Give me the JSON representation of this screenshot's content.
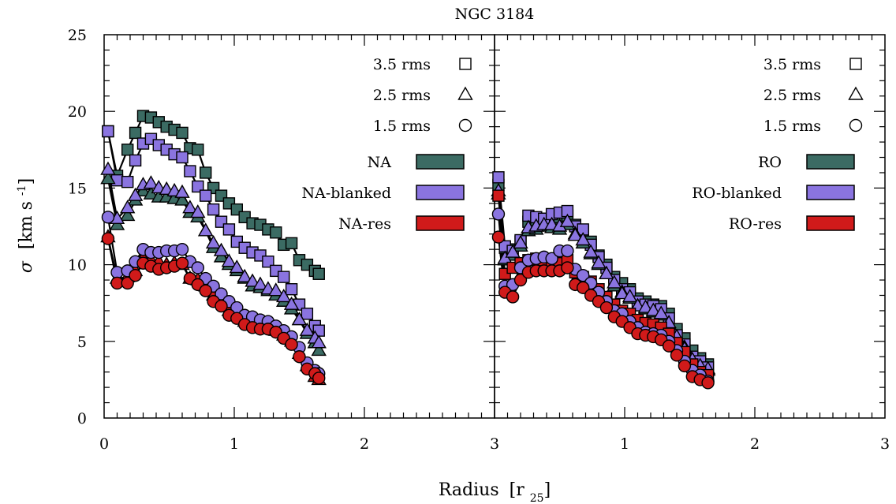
{
  "chart_data": {
    "type": "scatter",
    "title": "NGC 3184",
    "xlabel": "Radius",
    "xlabel_unit": "r",
    "xlabel_unit_sub": "25",
    "ylabel": "σ",
    "ylabel_unit": "km s",
    "ylabel_unit_sup": "-1",
    "ylim": [
      0,
      25
    ],
    "xlim": [
      0,
      3
    ],
    "y_ticks": [
      "0",
      "5",
      "10",
      "15",
      "20",
      "25"
    ],
    "x_ticks_left": [
      "0",
      "1",
      "2",
      "3"
    ],
    "x_ticks_right": [
      "1",
      "2",
      "3"
    ],
    "colors": {
      "dark": "#3b6b63",
      "blanked": "#8a74e0",
      "res": "#d01a1a"
    },
    "threshold_legend": [
      {
        "label": "3.5 rms",
        "marker": "square"
      },
      {
        "label": "2.5 rms",
        "marker": "triangle"
      },
      {
        "label": "1.5 rms",
        "marker": "circle"
      }
    ],
    "panels": [
      {
        "id": "left",
        "method_legend": [
          {
            "label": "NA",
            "color": "dark"
          },
          {
            "label": "NA-blanked",
            "color": "blanked"
          },
          {
            "label": "NA-res",
            "color": "res"
          }
        ],
        "x": [
          0.03,
          0.1,
          0.18,
          0.24,
          0.3,
          0.36,
          0.42,
          0.48,
          0.54,
          0.6,
          0.66,
          0.72,
          0.78,
          0.84,
          0.9,
          0.96,
          1.02,
          1.08,
          1.14,
          1.2,
          1.26,
          1.32,
          1.38,
          1.44,
          1.5,
          1.56,
          1.62,
          1.65
        ],
        "series": [
          {
            "name": "NA",
            "marker": "square",
            "color": "dark",
            "values": [
              18.7,
              15.8,
              17.5,
              18.6,
              19.7,
              19.6,
              19.3,
              19.0,
              18.8,
              18.6,
              17.6,
              17.5,
              16.0,
              15.0,
              14.5,
              14.0,
              13.6,
              13.1,
              12.7,
              12.6,
              12.3,
              12.1,
              11.3,
              11.4,
              10.3,
              10.0,
              9.6,
              9.4
            ]
          },
          {
            "name": "NA-blanked",
            "marker": "square",
            "color": "blanked",
            "values": [
              18.7,
              15.5,
              15.4,
              16.8,
              17.9,
              18.2,
              17.8,
              17.5,
              17.2,
              17.0,
              16.1,
              15.1,
              14.5,
              13.6,
              12.8,
              12.3,
              11.5,
              11.1,
              10.8,
              10.6,
              10.2,
              9.6,
              9.2,
              8.4,
              7.4,
              6.8,
              6.0,
              5.7
            ]
          },
          {
            "name": "NA",
            "marker": "triangle",
            "color": "dark",
            "values": [
              15.6,
              12.6,
              13.2,
              14.2,
              14.8,
              14.6,
              14.4,
              14.4,
              14.3,
              14.2,
              13.4,
              13.1,
              12.2,
              11.1,
              10.5,
              10.0,
              9.6,
              9.1,
              8.6,
              8.5,
              8.3,
              8.0,
              7.6,
              7.1,
              6.4,
              5.5,
              4.9,
              4.4
            ]
          },
          {
            "name": "NA-blanked",
            "marker": "triangle",
            "color": "blanked",
            "values": [
              16.2,
              13.0,
              13.7,
              14.5,
              15.2,
              15.3,
              15.0,
              14.9,
              14.8,
              14.7,
              13.7,
              13.4,
              12.2,
              11.4,
              10.9,
              10.2,
              9.8,
              9.2,
              8.9,
              8.7,
              8.4,
              8.3,
              7.9,
              7.4,
              6.4,
              5.7,
              5.2,
              4.9
            ]
          },
          {
            "name": "NA-res",
            "marker": "triangle",
            "color": "res",
            "values": [
              11.8,
              9.1,
              9.2,
              9.6,
              10.4,
              10.3,
              10.2,
              10.0,
              10.1,
              10.0,
              9.1,
              9.0,
              8.6,
              8.0,
              7.6,
              7.0,
              6.7,
              6.3,
              6.1,
              6.0,
              5.9,
              5.7,
              5.4,
              5.0,
              4.2,
              3.4,
              2.7,
              2.5
            ]
          },
          {
            "name": "NA-blanked",
            "marker": "circle",
            "color": "blanked",
            "values": [
              13.1,
              9.5,
              9.6,
              10.2,
              11.0,
              10.8,
              10.8,
              10.9,
              10.9,
              11.0,
              10.2,
              9.8,
              9.1,
              8.6,
              8.1,
              7.6,
              7.2,
              6.7,
              6.6,
              6.4,
              6.3,
              6.0,
              5.7,
              5.3,
              4.6,
              3.6,
              3.1,
              2.9
            ]
          },
          {
            "name": "NA-res",
            "marker": "circle",
            "color": "res",
            "values": [
              11.7,
              8.8,
              8.8,
              9.3,
              10.1,
              9.9,
              9.7,
              9.8,
              9.9,
              10.1,
              9.1,
              8.7,
              8.3,
              7.6,
              7.3,
              6.7,
              6.5,
              6.1,
              5.9,
              5.8,
              5.8,
              5.6,
              5.2,
              4.8,
              4.0,
              3.2,
              2.9,
              2.6
            ]
          }
        ]
      },
      {
        "id": "right",
        "method_legend": [
          {
            "label": "RO",
            "color": "dark"
          },
          {
            "label": "RO-blanked",
            "color": "blanked"
          },
          {
            "label": "RO-res",
            "color": "res"
          }
        ],
        "x": [
          0.03,
          0.08,
          0.14,
          0.2,
          0.26,
          0.32,
          0.38,
          0.44,
          0.5,
          0.56,
          0.62,
          0.68,
          0.74,
          0.8,
          0.86,
          0.92,
          0.98,
          1.04,
          1.1,
          1.16,
          1.22,
          1.28,
          1.34,
          1.4,
          1.46,
          1.52,
          1.58,
          1.64
        ],
        "series": [
          {
            "name": "RO",
            "marker": "square",
            "color": "dark",
            "values": [
              15.2,
              11.1,
              11.0,
              11.5,
              12.8,
              12.9,
              13.0,
              13.0,
              13.1,
              13.2,
              12.6,
              12.2,
              11.5,
              10.6,
              10.0,
              9.2,
              8.8,
              8.4,
              7.8,
              7.6,
              7.4,
              7.3,
              6.8,
              5.8,
              5.2,
              4.4,
              3.9,
              3.5
            ]
          },
          {
            "name": "RO-blanked",
            "marker": "square",
            "color": "blanked",
            "values": [
              15.7,
              11.2,
              10.9,
              11.6,
              13.2,
              13.1,
              13.0,
              13.3,
              13.4,
              13.5,
              12.5,
              12.3,
              11.3,
              10.5,
              9.8,
              9.0,
              8.4,
              8.2,
              7.6,
              7.4,
              7.3,
              7.1,
              6.5,
              5.4,
              4.8,
              4.0,
              3.7,
              3.3
            ]
          },
          {
            "name": "RO",
            "marker": "triangle",
            "color": "dark",
            "values": [
              14.6,
              10.3,
              10.6,
              11.2,
              12.2,
              12.3,
              12.5,
              12.4,
              12.3,
              12.6,
              12.0,
              11.4,
              10.7,
              10.0,
              9.4,
              8.6,
              8.2,
              7.8,
              7.3,
              7.1,
              6.9,
              6.7,
              6.1,
              5.2,
              4.6,
              3.7,
              3.3,
              3.1
            ]
          },
          {
            "name": "RO-blanked",
            "marker": "triangle",
            "color": "blanked",
            "values": [
              14.8,
              10.4,
              10.8,
              11.4,
              12.4,
              12.5,
              12.6,
              12.6,
              12.5,
              12.8,
              11.9,
              11.6,
              10.8,
              10.1,
              9.4,
              8.8,
              8.1,
              7.9,
              7.3,
              7.2,
              7.0,
              6.8,
              6.2,
              5.3,
              4.5,
              3.8,
              3.4,
              3.2
            ]
          },
          {
            "name": "RO-res",
            "marker": "square",
            "color": "res",
            "values": [
              14.5,
              9.4,
              9.8,
              10.1,
              10.3,
              10.4,
              10.3,
              10.2,
              10.1,
              10.3,
              9.5,
              9.2,
              8.9,
              8.4,
              7.9,
              7.4,
              7.0,
              6.8,
              6.4,
              6.2,
              6.1,
              5.9,
              5.5,
              4.9,
              4.3,
              3.5,
              3.0,
              2.8
            ]
          },
          {
            "name": "RO-blanked",
            "marker": "circle",
            "color": "blanked",
            "values": [
              13.3,
              8.6,
              8.7,
              9.8,
              10.3,
              10.4,
              10.5,
              10.4,
              10.9,
              10.9,
              9.7,
              9.3,
              8.8,
              8.2,
              7.6,
              7.0,
              6.8,
              6.3,
              5.9,
              5.6,
              5.5,
              5.4,
              5.0,
              4.4,
              3.7,
              3.1,
              2.8,
              2.4
            ]
          },
          {
            "name": "RO-res",
            "marker": "circle",
            "color": "res",
            "values": [
              11.8,
              8.2,
              7.9,
              9.0,
              9.5,
              9.6,
              9.6,
              9.6,
              9.6,
              9.8,
              8.7,
              8.5,
              8.0,
              7.6,
              7.2,
              6.6,
              6.3,
              5.9,
              5.5,
              5.4,
              5.3,
              5.1,
              4.7,
              4.1,
              3.4,
              2.7,
              2.5,
              2.3
            ]
          }
        ]
      }
    ]
  }
}
